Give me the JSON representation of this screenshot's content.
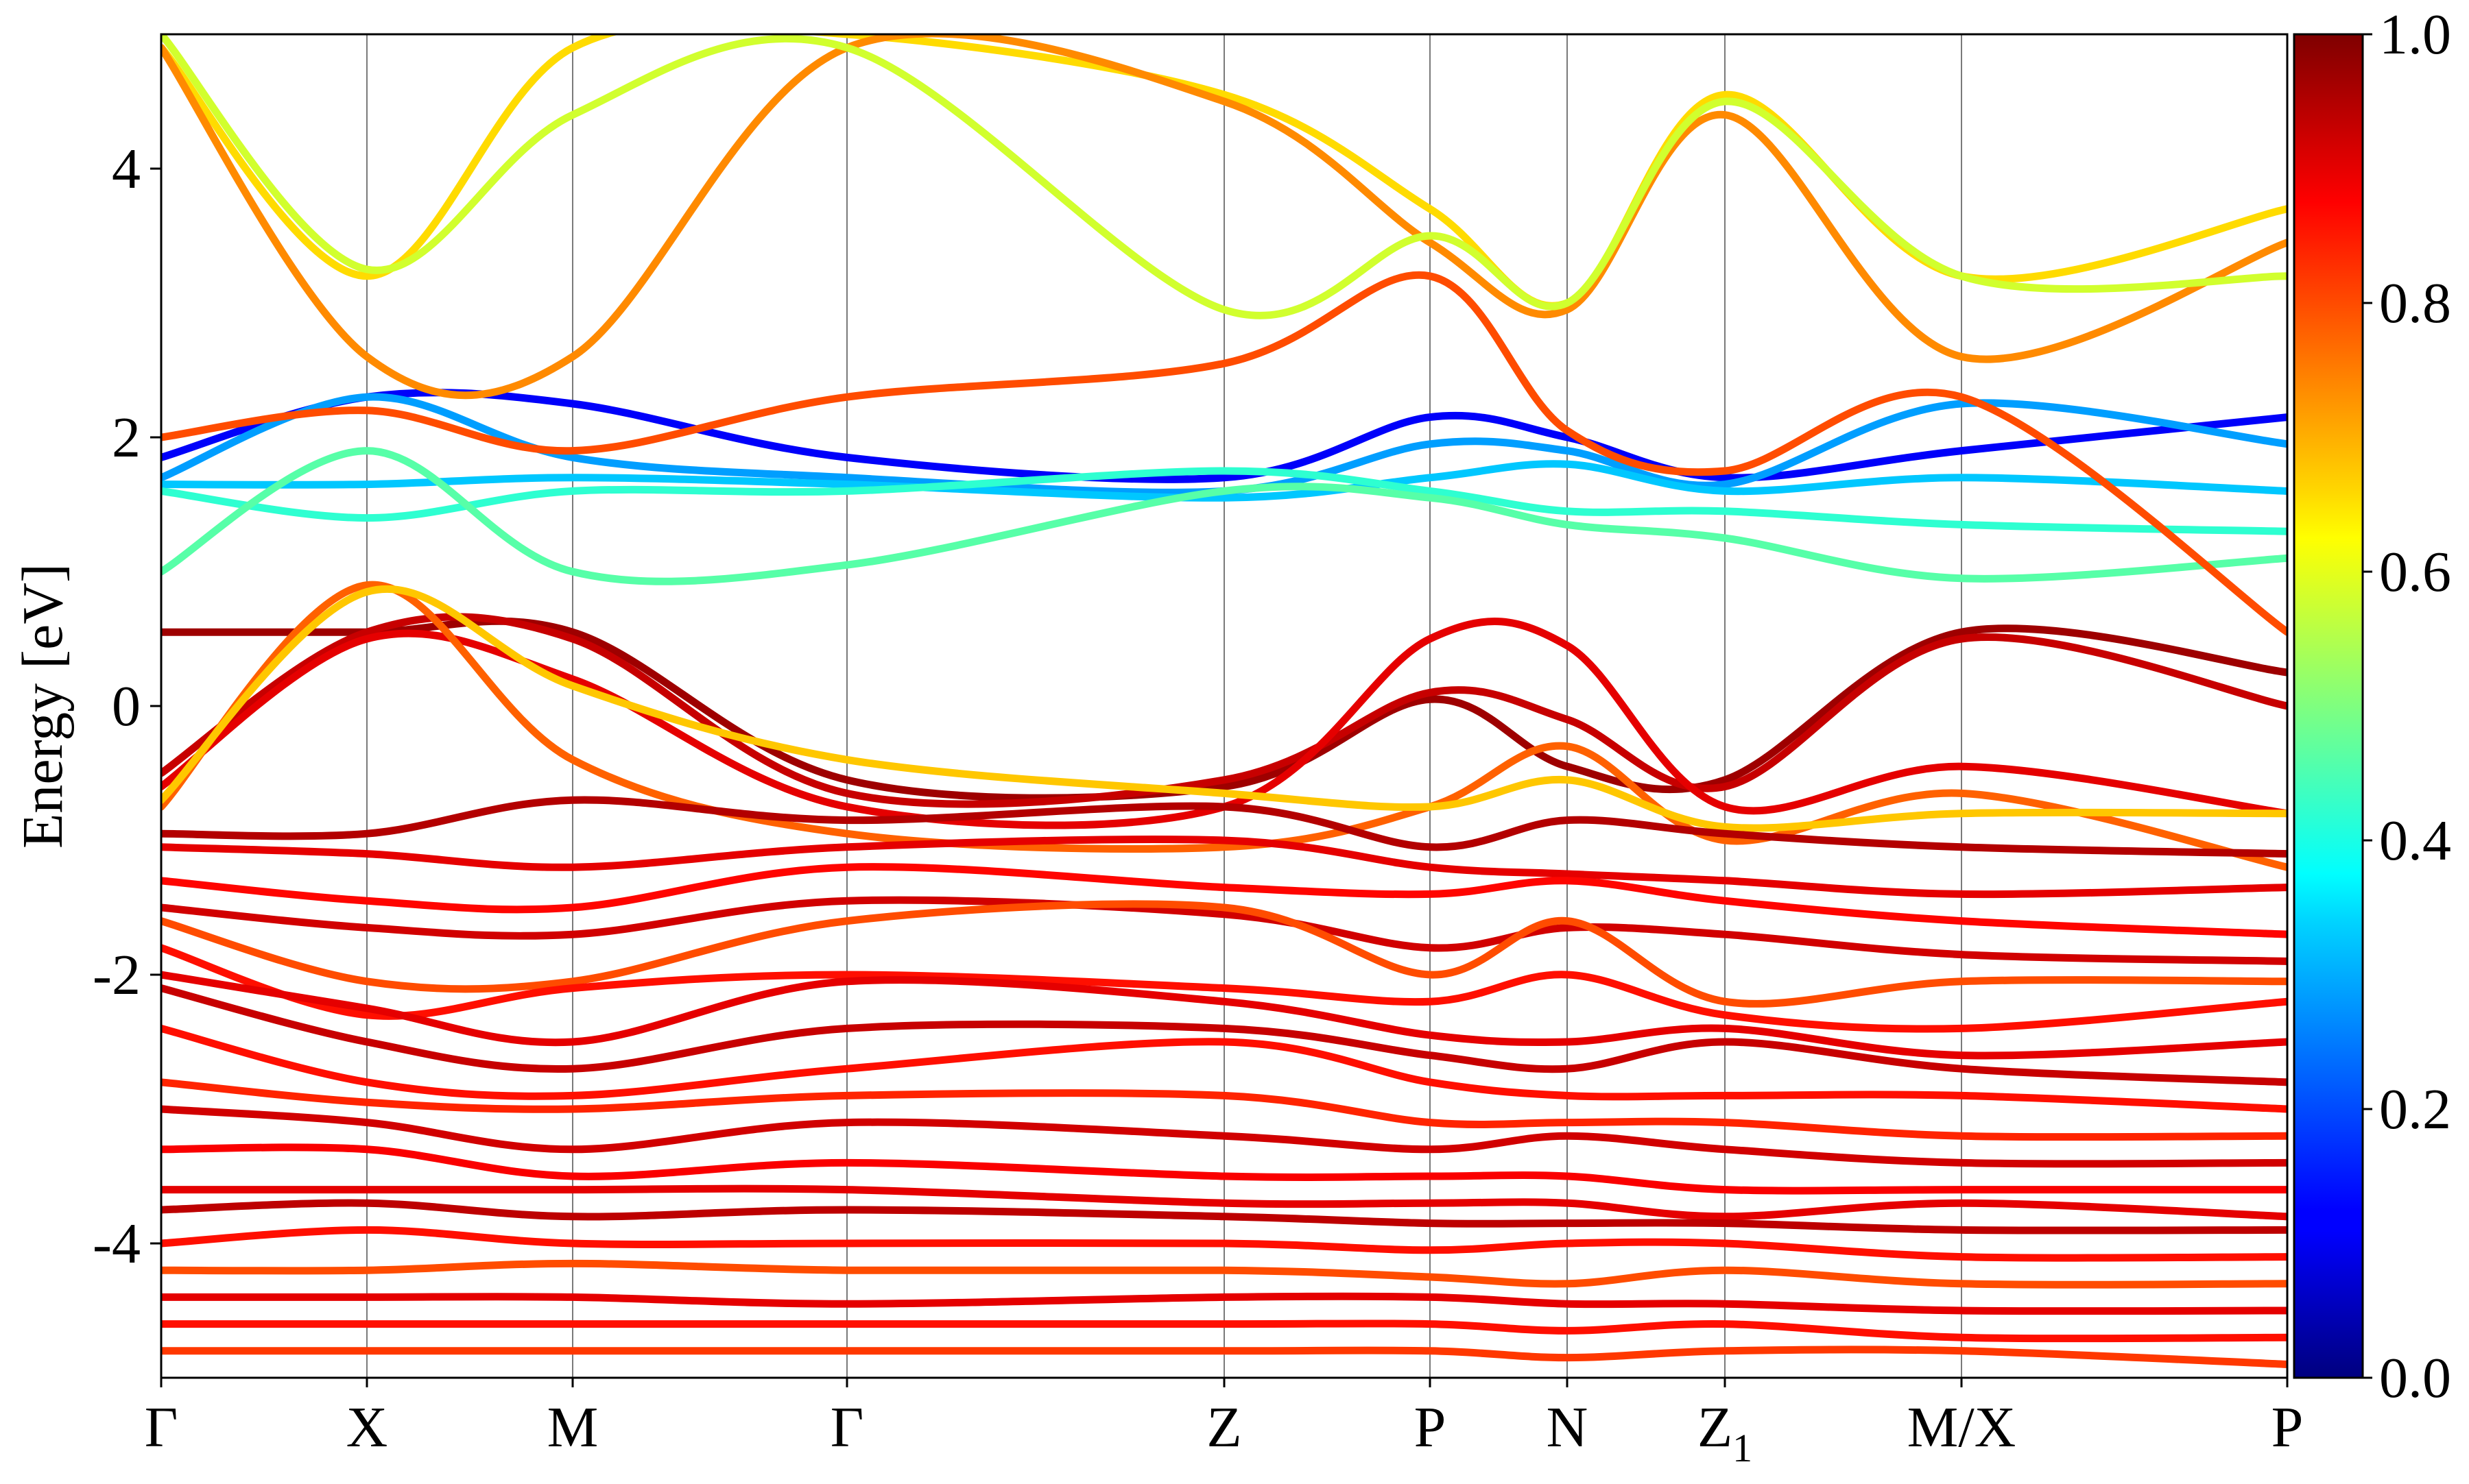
{
  "chart_data": {
    "type": "line",
    "title": "",
    "xlabel": "",
    "ylabel": "Energy [eV]",
    "ylim": [
      -5,
      5
    ],
    "y_ticks": [
      "-4",
      "-2",
      "0",
      "2",
      "4"
    ],
    "grid": "vertical lines at high-symmetry points",
    "kpath": [
      "Γ",
      "X",
      "M",
      "Γ",
      "Z",
      "P",
      "N",
      "Z1",
      "M/X",
      "P"
    ],
    "x_positions": [
      0,
      0.6,
      1.2,
      2.0,
      3.1,
      3.7,
      4.1,
      4.56,
      5.25,
      6.2
    ],
    "xlim": [
      0,
      6.2
    ],
    "colorbar": {
      "colormap": "jet",
      "range": [
        0.0,
        1.0
      ],
      "ticks": [
        "0.0",
        "0.2",
        "0.4",
        "0.6",
        "0.8",
        "1.0"
      ]
    },
    "bands": [
      {
        "c": 0.97,
        "e": [
          0.55,
          0.55,
          0.55,
          -0.55,
          -0.6,
          0.05,
          -0.45,
          -0.55,
          0.55,
          0.25
        ]
      },
      {
        "c": 0.93,
        "e": [
          -0.5,
          0.55,
          0.5,
          -0.65,
          -0.55,
          0.1,
          -0.1,
          -0.6,
          0.5,
          0.0
        ]
      },
      {
        "c": 0.9,
        "e": [
          -0.6,
          0.5,
          0.2,
          -0.75,
          -0.75,
          0.5,
          0.45,
          -0.75,
          -0.45,
          -0.8
        ]
      },
      {
        "c": 0.78,
        "e": [
          -0.75,
          0.9,
          -0.4,
          -0.95,
          -1.05,
          -0.75,
          -0.3,
          -1.0,
          -0.65,
          -1.2
        ]
      },
      {
        "c": 0.68,
        "e": [
          -0.7,
          0.85,
          0.15,
          -0.4,
          -0.65,
          -0.75,
          -0.55,
          -0.9,
          -0.8,
          -0.8
        ]
      },
      {
        "c": 0.95,
        "e": [
          -0.95,
          -0.95,
          -0.7,
          -0.85,
          -0.75,
          -1.05,
          -0.85,
          -0.95,
          -1.05,
          -1.1
        ]
      },
      {
        "c": 0.9,
        "e": [
          -1.05,
          -1.1,
          -1.2,
          -1.05,
          -1.0,
          -1.2,
          -1.25,
          -1.3,
          -1.4,
          -1.35
        ]
      },
      {
        "c": 0.87,
        "e": [
          -1.3,
          -1.45,
          -1.5,
          -1.2,
          -1.35,
          -1.4,
          -1.3,
          -1.45,
          -1.6,
          -1.7
        ]
      },
      {
        "c": 0.92,
        "e": [
          -1.5,
          -1.65,
          -1.7,
          -1.45,
          -1.55,
          -1.8,
          -1.65,
          -1.7,
          -1.85,
          -1.9
        ]
      },
      {
        "c": 0.8,
        "e": [
          -1.6,
          -2.05,
          -2.05,
          -1.6,
          -1.5,
          -2.0,
          -1.6,
          -2.2,
          -2.05,
          -2.05
        ]
      },
      {
        "c": 0.86,
        "e": [
          -1.8,
          -2.3,
          -2.1,
          -2.0,
          -2.1,
          -2.2,
          -2.0,
          -2.3,
          -2.4,
          -2.2
        ]
      },
      {
        "c": 0.9,
        "e": [
          -2.0,
          -2.25,
          -2.5,
          -2.05,
          -2.2,
          -2.45,
          -2.5,
          -2.4,
          -2.6,
          -2.5
        ]
      },
      {
        "c": 0.93,
        "e": [
          -2.1,
          -2.5,
          -2.7,
          -2.4,
          -2.4,
          -2.6,
          -2.7,
          -2.5,
          -2.7,
          -2.8
        ]
      },
      {
        "c": 0.86,
        "e": [
          -2.4,
          -2.8,
          -2.9,
          -2.7,
          -2.5,
          -2.8,
          -2.9,
          -2.9,
          -2.9,
          -3.0
        ]
      },
      {
        "c": 0.84,
        "e": [
          -2.8,
          -2.95,
          -3.0,
          -2.9,
          -2.9,
          -3.1,
          -3.1,
          -3.1,
          -3.2,
          -3.2
        ]
      },
      {
        "c": 0.92,
        "e": [
          -3.0,
          -3.1,
          -3.3,
          -3.1,
          -3.2,
          -3.3,
          -3.2,
          -3.3,
          -3.4,
          -3.4
        ]
      },
      {
        "c": 0.88,
        "e": [
          -3.3,
          -3.3,
          -3.5,
          -3.4,
          -3.5,
          -3.5,
          -3.5,
          -3.6,
          -3.6,
          -3.6
        ]
      },
      {
        "c": 0.9,
        "e": [
          -3.6,
          -3.6,
          -3.6,
          -3.6,
          -3.7,
          -3.7,
          -3.7,
          -3.8,
          -3.7,
          -3.8
        ]
      },
      {
        "c": 0.94,
        "e": [
          -3.75,
          -3.7,
          -3.8,
          -3.75,
          -3.8,
          -3.85,
          -3.85,
          -3.85,
          -3.9,
          -3.9
        ]
      },
      {
        "c": 0.86,
        "e": [
          -4.0,
          -3.9,
          -4.0,
          -4.0,
          -4.0,
          -4.05,
          -4.0,
          -4.0,
          -4.1,
          -4.1
        ]
      },
      {
        "c": 0.8,
        "e": [
          -4.2,
          -4.2,
          -4.15,
          -4.2,
          -4.2,
          -4.25,
          -4.3,
          -4.2,
          -4.3,
          -4.3
        ]
      },
      {
        "c": 0.9,
        "e": [
          -4.4,
          -4.4,
          -4.4,
          -4.45,
          -4.4,
          -4.4,
          -4.45,
          -4.45,
          -4.5,
          -4.5
        ]
      },
      {
        "c": 0.86,
        "e": [
          -4.6,
          -4.6,
          -4.6,
          -4.6,
          -4.6,
          -4.6,
          -4.65,
          -4.6,
          -4.7,
          -4.7
        ]
      },
      {
        "c": 0.82,
        "e": [
          -4.8,
          -4.8,
          -4.8,
          -4.8,
          -4.8,
          -4.8,
          -4.85,
          -4.8,
          -4.8,
          -4.9
        ]
      },
      {
        "c": 0.12,
        "e": [
          1.85,
          2.3,
          2.25,
          1.85,
          1.7,
          2.15,
          2.0,
          1.7,
          1.9,
          2.15
        ]
      },
      {
        "c": 0.28,
        "e": [
          1.7,
          2.3,
          1.85,
          1.7,
          1.6,
          1.95,
          1.9,
          1.65,
          2.25,
          1.95
        ]
      },
      {
        "c": 0.32,
        "e": [
          1.65,
          1.65,
          1.7,
          1.65,
          1.55,
          1.7,
          1.8,
          1.6,
          1.7,
          1.6
        ]
      },
      {
        "c": 0.42,
        "e": [
          1.6,
          1.4,
          1.6,
          1.6,
          1.75,
          1.6,
          1.45,
          1.45,
          1.35,
          1.3
        ]
      },
      {
        "c": 0.46,
        "e": [
          1.0,
          1.9,
          1.0,
          1.05,
          1.6,
          1.55,
          1.35,
          1.25,
          0.95,
          1.1
        ]
      },
      {
        "c": 0.66,
        "e": [
          4.9,
          3.2,
          4.9,
          5.0,
          4.55,
          3.7,
          3.0,
          4.55,
          3.2,
          3.7
        ]
      },
      {
        "c": 0.74,
        "e": [
          4.9,
          2.6,
          2.6,
          4.9,
          4.5,
          3.45,
          2.95,
          4.4,
          2.6,
          3.45
        ]
      },
      {
        "c": 0.58,
        "e": [
          5.0,
          3.25,
          4.4,
          4.9,
          2.95,
          3.5,
          3.0,
          4.5,
          3.2,
          3.2
        ]
      },
      {
        "c": 0.8,
        "e": [
          2.0,
          2.2,
          1.9,
          2.3,
          2.55,
          3.2,
          2.05,
          1.75,
          2.3,
          0.55
        ]
      }
    ]
  }
}
